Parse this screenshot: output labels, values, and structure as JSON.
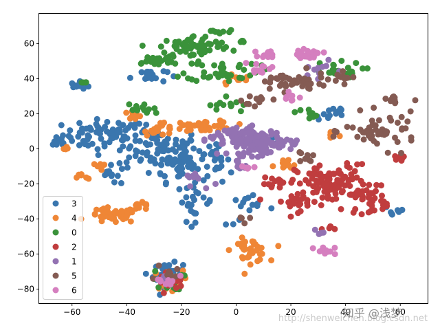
{
  "chart_data": {
    "type": "scatter",
    "title": "",
    "xlabel": "",
    "ylabel": "",
    "xlim": [
      -72,
      70
    ],
    "ylim": [
      -88,
      77
    ],
    "xticks": [
      -60,
      -40,
      -20,
      0,
      20,
      40,
      60
    ],
    "yticks": [
      -80,
      -60,
      -40,
      -20,
      0,
      20,
      40,
      60
    ],
    "xtick_labels": [
      "−60",
      "−40",
      "−20",
      "0",
      "20",
      "40",
      "60"
    ],
    "ytick_labels": [
      "−80",
      "−60",
      "−40",
      "−20",
      "0",
      "20",
      "40",
      "60"
    ],
    "grid": false,
    "legend_position": "lower-left",
    "marker": "circle",
    "series": [
      {
        "name": "3",
        "color": "#3a76ae",
        "clusters": [
          {
            "cx": -48,
            "cy": 8,
            "rx": 14,
            "ry": 8,
            "n": 70
          },
          {
            "cx": -28,
            "cy": 0,
            "rx": 14,
            "ry": 10,
            "n": 80
          },
          {
            "cx": -20,
            "cy": -10,
            "rx": 10,
            "ry": 8,
            "n": 50
          },
          {
            "cx": -57,
            "cy": 36,
            "rx": 3,
            "ry": 2,
            "n": 12
          },
          {
            "cx": -32,
            "cy": 42,
            "rx": 6,
            "ry": 4,
            "n": 18
          },
          {
            "cx": -25,
            "cy": -72,
            "rx": 5,
            "ry": 6,
            "n": 40
          },
          {
            "cx": -15,
            "cy": -30,
            "rx": 6,
            "ry": 10,
            "n": 25
          },
          {
            "cx": -8,
            "cy": -5,
            "rx": 5,
            "ry": 6,
            "n": 20
          },
          {
            "cx": 5,
            "cy": -35,
            "rx": 8,
            "ry": 8,
            "n": 15
          },
          {
            "cx": 35,
            "cy": 20,
            "rx": 6,
            "ry": 5,
            "n": 12
          },
          {
            "cx": 58,
            "cy": -35,
            "rx": 4,
            "ry": 4,
            "n": 8
          },
          {
            "cx": 10,
            "cy": 5,
            "rx": 8,
            "ry": 6,
            "n": 15
          },
          {
            "cx": -65,
            "cy": 3,
            "rx": 3,
            "ry": 2,
            "n": 8
          },
          {
            "cx": -45,
            "cy": -15,
            "rx": 6,
            "ry": 5,
            "n": 12
          }
        ]
      },
      {
        "name": "4",
        "color": "#ef8636",
        "clusters": [
          {
            "cx": -45,
            "cy": -38,
            "rx": 8,
            "ry": 4,
            "n": 45
          },
          {
            "cx": -35,
            "cy": -33,
            "rx": 4,
            "ry": 2,
            "n": 12
          },
          {
            "cx": -12,
            "cy": 13,
            "rx": 10,
            "ry": 3,
            "n": 45
          },
          {
            "cx": -28,
            "cy": 11,
            "rx": 5,
            "ry": 3,
            "n": 15
          },
          {
            "cx": 0,
            "cy": 40,
            "rx": 5,
            "ry": 3,
            "n": 12
          },
          {
            "cx": 5,
            "cy": -58,
            "rx": 6,
            "ry": 6,
            "n": 35
          },
          {
            "cx": -25,
            "cy": -75,
            "rx": 5,
            "ry": 5,
            "n": 25
          },
          {
            "cx": -38,
            "cy": 19,
            "rx": 4,
            "ry": 3,
            "n": 10
          },
          {
            "cx": 18,
            "cy": -10,
            "rx": 4,
            "ry": 4,
            "n": 10
          },
          {
            "cx": -56,
            "cy": -16,
            "rx": 2,
            "ry": 2,
            "n": 6
          },
          {
            "cx": -50,
            "cy": -10,
            "rx": 2,
            "ry": 2,
            "n": 6
          },
          {
            "cx": -62,
            "cy": 0,
            "rx": 2,
            "ry": 2,
            "n": 6
          },
          {
            "cx": 35,
            "cy": 8,
            "rx": 3,
            "ry": 3,
            "n": 6
          }
        ]
      },
      {
        "name": "0",
        "color": "#3a923a",
        "clusters": [
          {
            "cx": -15,
            "cy": 58,
            "rx": 12,
            "ry": 6,
            "n": 70
          },
          {
            "cx": -5,
            "cy": 45,
            "rx": 12,
            "ry": 6,
            "n": 40
          },
          {
            "cx": -30,
            "cy": 50,
            "rx": 8,
            "ry": 3,
            "n": 22
          },
          {
            "cx": 35,
            "cy": 45,
            "rx": 10,
            "ry": 4,
            "n": 20
          },
          {
            "cx": -35,
            "cy": 22,
            "rx": 6,
            "ry": 4,
            "n": 12
          },
          {
            "cx": -25,
            "cy": -75,
            "rx": 5,
            "ry": 5,
            "n": 20
          },
          {
            "cx": -3,
            "cy": 25,
            "rx": 6,
            "ry": 5,
            "n": 12
          },
          {
            "cx": 25,
            "cy": 20,
            "rx": 4,
            "ry": 3,
            "n": 8
          },
          {
            "cx": -5,
            "cy": 67,
            "rx": 4,
            "ry": 1,
            "n": 8
          },
          {
            "cx": 2,
            "cy": 61,
            "rx": 1,
            "ry": 1,
            "n": 4
          },
          {
            "cx": -56,
            "cy": 38,
            "rx": 2,
            "ry": 1,
            "n": 4
          }
        ]
      },
      {
        "name": "2",
        "color": "#c03d3e",
        "clusters": [
          {
            "cx": 35,
            "cy": -20,
            "rx": 12,
            "ry": 10,
            "n": 110
          },
          {
            "cx": 48,
            "cy": -28,
            "rx": 6,
            "ry": 8,
            "n": 30
          },
          {
            "cx": 22,
            "cy": -30,
            "rx": 8,
            "ry": 5,
            "n": 25
          },
          {
            "cx": 15,
            "cy": -20,
            "rx": 5,
            "ry": 3,
            "n": 12
          },
          {
            "cx": -25,
            "cy": -75,
            "rx": 5,
            "ry": 5,
            "n": 15
          },
          {
            "cx": 60,
            "cy": -6,
            "rx": 2,
            "ry": 2,
            "n": 6
          },
          {
            "cx": 35,
            "cy": -45,
            "rx": 3,
            "ry": 3,
            "n": 5
          },
          {
            "cx": 55,
            "cy": -32,
            "rx": 3,
            "ry": 3,
            "n": 6
          }
        ]
      },
      {
        "name": "1",
        "color": "#9372b2",
        "clusters": [
          {
            "cx": 7,
            "cy": 4,
            "rx": 9,
            "ry": 7,
            "n": 120
          },
          {
            "cx": -5,
            "cy": 8,
            "rx": 6,
            "ry": 4,
            "n": 20
          },
          {
            "cx": 18,
            "cy": 3,
            "rx": 5,
            "ry": 3,
            "n": 15
          },
          {
            "cx": -15,
            "cy": -18,
            "rx": 5,
            "ry": 5,
            "n": 10
          },
          {
            "cx": 2,
            "cy": -10,
            "rx": 3,
            "ry": 2,
            "n": 6
          },
          {
            "cx": 30,
            "cy": -48,
            "rx": 2,
            "ry": 3,
            "n": 4
          },
          {
            "cx": 30,
            "cy": 45,
            "rx": 6,
            "ry": 4,
            "n": 10
          },
          {
            "cx": -25,
            "cy": -75,
            "rx": 4,
            "ry": 4,
            "n": 6
          }
        ]
      },
      {
        "name": "5",
        "color": "#845b53",
        "clusters": [
          {
            "cx": 53,
            "cy": 10,
            "rx": 12,
            "ry": 9,
            "n": 50
          },
          {
            "cx": 20,
            "cy": 38,
            "rx": 12,
            "ry": 5,
            "n": 45
          },
          {
            "cx": 38,
            "cy": 40,
            "rx": 6,
            "ry": 3,
            "n": 10
          },
          {
            "cx": 58,
            "cy": 28,
            "rx": 6,
            "ry": 3,
            "n": 10
          },
          {
            "cx": 8,
            "cy": 28,
            "rx": 5,
            "ry": 5,
            "n": 10
          },
          {
            "cx": 25,
            "cy": -5,
            "rx": 3,
            "ry": 3,
            "n": 8
          },
          {
            "cx": -25,
            "cy": -72,
            "rx": 4,
            "ry": 4,
            "n": 8
          },
          {
            "cx": 3,
            "cy": -40,
            "rx": 2,
            "ry": 2,
            "n": 4
          }
        ]
      },
      {
        "name": "6",
        "color": "#d57fbf",
        "clusters": [
          {
            "cx": 26,
            "cy": 54,
            "rx": 5,
            "ry": 2,
            "n": 25
          },
          {
            "cx": 12,
            "cy": 54,
            "rx": 3,
            "ry": 2,
            "n": 12
          },
          {
            "cx": 8,
            "cy": 46,
            "rx": 5,
            "ry": 3,
            "n": 12
          },
          {
            "cx": 32,
            "cy": -58,
            "rx": 4,
            "ry": 2,
            "n": 10
          },
          {
            "cx": 5,
            "cy": -10,
            "rx": 3,
            "ry": 2,
            "n": 5
          },
          {
            "cx": -25,
            "cy": -75,
            "rx": 4,
            "ry": 4,
            "n": 8
          },
          {
            "cx": 20,
            "cy": 30,
            "rx": 4,
            "ry": 3,
            "n": 8
          }
        ]
      }
    ]
  },
  "watermark": {
    "brand": "知乎 @浅梦",
    "url": "http://shenweichen.blog.csdn.net"
  }
}
